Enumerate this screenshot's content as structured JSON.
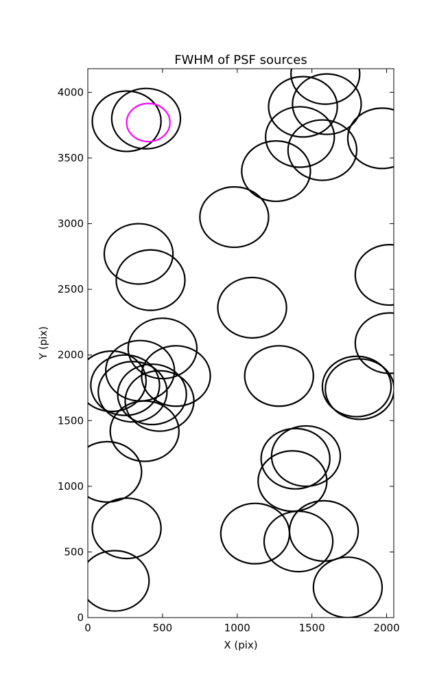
{
  "chart_data": {
    "type": "scatter",
    "title": "FWHM of PSF sources",
    "xlabel": "X (pix)",
    "ylabel": "Y (pix)",
    "xlim": [
      0,
      2048
    ],
    "ylim": [
      0,
      4180
    ],
    "xticks": [
      0,
      500,
      1000,
      1500,
      2000
    ],
    "yticks": [
      0,
      500,
      1000,
      1500,
      2000,
      2500,
      3000,
      3500,
      4000
    ],
    "grid": false,
    "marker": "open circle, radius = FWHM",
    "colors": {
      "default": "#000000",
      "highlight": "#ff00ff"
    },
    "series": [
      {
        "color": "#000000",
        "points": [
          {
            "x": 260,
            "y": 3780,
            "r": 230
          },
          {
            "x": 390,
            "y": 3800,
            "r": 230
          },
          {
            "x": 340,
            "y": 2770,
            "r": 230
          },
          {
            "x": 420,
            "y": 2570,
            "r": 230
          },
          {
            "x": 980,
            "y": 3050,
            "r": 230
          },
          {
            "x": 1260,
            "y": 3400,
            "r": 230
          },
          {
            "x": 1440,
            "y": 3890,
            "r": 230
          },
          {
            "x": 1600,
            "y": 3910,
            "r": 230
          },
          {
            "x": 1590,
            "y": 4140,
            "r": 230
          },
          {
            "x": 1420,
            "y": 3660,
            "r": 230
          },
          {
            "x": 1570,
            "y": 3560,
            "r": 230
          },
          {
            "x": 1970,
            "y": 3650,
            "r": 230
          },
          {
            "x": 2020,
            "y": 2610,
            "r": 230
          },
          {
            "x": 1100,
            "y": 2360,
            "r": 230
          },
          {
            "x": 2020,
            "y": 2090,
            "r": 230
          },
          {
            "x": 160,
            "y": 1800,
            "r": 230
          },
          {
            "x": 250,
            "y": 1770,
            "r": 230
          },
          {
            "x": 300,
            "y": 1720,
            "r": 230
          },
          {
            "x": 350,
            "y": 1880,
            "r": 230
          },
          {
            "x": 430,
            "y": 1700,
            "r": 230
          },
          {
            "x": 480,
            "y": 1650,
            "r": 230
          },
          {
            "x": 500,
            "y": 2050,
            "r": 230
          },
          {
            "x": 590,
            "y": 1840,
            "r": 230
          },
          {
            "x": 380,
            "y": 1420,
            "r": 230
          },
          {
            "x": 1280,
            "y": 1840,
            "r": 230
          },
          {
            "x": 1800,
            "y": 1760,
            "r": 230
          },
          {
            "x": 1820,
            "y": 1740,
            "r": 230
          },
          {
            "x": 130,
            "y": 1110,
            "r": 230
          },
          {
            "x": 1390,
            "y": 1210,
            "r": 230
          },
          {
            "x": 1460,
            "y": 1230,
            "r": 230
          },
          {
            "x": 1370,
            "y": 1040,
            "r": 230
          },
          {
            "x": 260,
            "y": 680,
            "r": 230
          },
          {
            "x": 180,
            "y": 280,
            "r": 230
          },
          {
            "x": 1120,
            "y": 640,
            "r": 230
          },
          {
            "x": 1410,
            "y": 580,
            "r": 230
          },
          {
            "x": 1580,
            "y": 660,
            "r": 230
          },
          {
            "x": 1740,
            "y": 230,
            "r": 230
          }
        ]
      },
      {
        "color": "#ff00ff",
        "points": [
          {
            "x": 405,
            "y": 3770,
            "r": 145
          }
        ]
      }
    ]
  }
}
